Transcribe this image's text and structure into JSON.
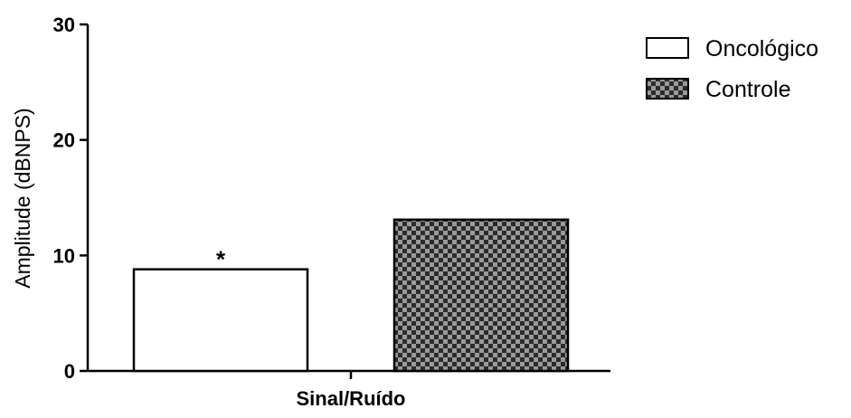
{
  "chart_data": {
    "type": "bar",
    "categories": [
      "Sinal/Ruído"
    ],
    "series": [
      {
        "name": "Oncológico",
        "values": [
          8.8
        ],
        "pattern": "white"
      },
      {
        "name": "Controle",
        "values": [
          13.1
        ],
        "pattern": "checker"
      }
    ],
    "title": "",
    "xlabel": "",
    "ylabel": "Amplitude (dBNPS)",
    "ylim": [
      0,
      30
    ],
    "yticks": [
      "0",
      "10",
      "20",
      "30"
    ],
    "grid": false,
    "legend_position": "top-right",
    "annotations": [
      {
        "text": "*",
        "series": "Oncológico",
        "category": "Sinal/Ruído"
      }
    ],
    "colors": {
      "bar_outline": "#000000",
      "oncologico_fill": "#ffffff",
      "checker_dark": "#2b2b2b",
      "checker_light": "#9a9a9a"
    }
  }
}
